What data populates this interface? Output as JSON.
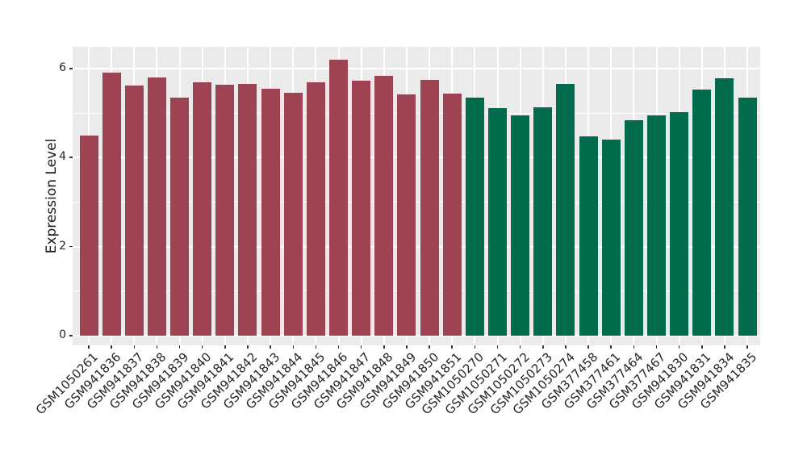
{
  "figure": {
    "background": "#FFFFFF"
  },
  "chart_data": {
    "type": "bar",
    "title": "",
    "xlabel": "",
    "ylabel": "Expression Level",
    "ylim": [
      0,
      6.5
    ],
    "yticks": [
      0,
      2,
      4,
      6
    ],
    "yticks_minor": [
      1,
      3,
      5
    ],
    "grid": "on",
    "legend": "none",
    "panel_background": "#EBEBEB",
    "gridline_color": "#FFFFFF",
    "axis_text_color": "#262626",
    "tick_mark_color": "#333333",
    "categories": [
      "GSM1050261",
      "GSM941836",
      "GSM941837",
      "GSM941838",
      "GSM941839",
      "GSM941840",
      "GSM941841",
      "GSM941842",
      "GSM941843",
      "GSM941844",
      "GSM941845",
      "GSM941846",
      "GSM941847",
      "GSM941848",
      "GSM941849",
      "GSM941850",
      "GSM941851",
      "GSM1050270",
      "GSM1050271",
      "GSM1050272",
      "GSM1050273",
      "GSM1050274",
      "GSM377458",
      "GSM377461",
      "GSM377464",
      "GSM377467",
      "GSM941830",
      "GSM941831",
      "GSM941834",
      "GSM941835"
    ],
    "values": [
      4.5,
      5.9,
      5.62,
      5.8,
      5.35,
      5.68,
      5.64,
      5.65,
      5.54,
      5.46,
      5.69,
      6.2,
      5.73,
      5.83,
      5.42,
      5.75,
      5.44,
      5.35,
      5.11,
      4.95,
      5.12,
      5.66,
      4.47,
      4.4,
      4.84,
      4.95,
      5.01,
      5.52,
      5.78,
      5.35
    ],
    "bar_group_index": [
      0,
      0,
      0,
      0,
      0,
      0,
      0,
      0,
      0,
      0,
      0,
      0,
      0,
      0,
      0,
      0,
      0,
      1,
      1,
      1,
      1,
      1,
      1,
      1,
      1,
      1,
      1,
      1,
      1,
      1
    ],
    "groups": [
      {
        "name": "group-1-maroon",
        "color": "#9E4352"
      },
      {
        "name": "group-2-green",
        "color": "#026A4D"
      }
    ]
  }
}
